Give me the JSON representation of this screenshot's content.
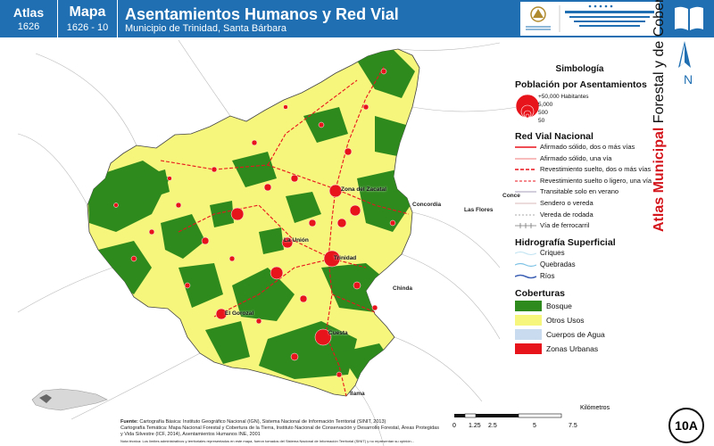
{
  "header": {
    "atlas_label": "Atlas",
    "atlas_number": "1626",
    "mapa_label": "Mapa",
    "mapa_number": "1626 - 10",
    "title": "Asentamientos Humanos y Red Vial",
    "subtitle": "Municipio de Trinidad, Santa Bárbara"
  },
  "side": {
    "vertical_title_bold": "Atlas Municipal",
    "vertical_title_rest": " Forestal y de Cobertura de la Tierra",
    "north_label": "N",
    "badge": "10A"
  },
  "legend": {
    "title": "Simbología",
    "population_heading": "Población por Asentamientos",
    "population_classes": [
      "+50,000 Habitantes",
      "5,000",
      "500",
      "50"
    ],
    "roads_heading": "Red Vial Nacional",
    "roads": [
      "Afirmado sólido, dos o más vías",
      "Afirmado sólido, una vía",
      "Revestimiento suelto, dos o más vías",
      "Revestimiento suelto o ligero, una vía",
      "Transitable solo en verano",
      "Sendero o vereda",
      "Vereda de rodada",
      "Vía de ferrocarril"
    ],
    "hydro_heading": "Hidrografía Superficial",
    "hydro": [
      "Criques",
      "Quebradas",
      "Ríos"
    ],
    "cover_heading": "Coberturas",
    "covers": [
      {
        "label": "Bosque",
        "color": "#2f8a1e"
      },
      {
        "label": "Otros Usos",
        "color": "#f6f67c"
      },
      {
        "label": "Cuerpos de Agua",
        "color": "#c9dcef"
      },
      {
        "label": "Zonas Urbanas",
        "color": "#e8141c"
      }
    ]
  },
  "places": {
    "outside": [
      "Concordia",
      "Las Flores",
      "Conce",
      "Chinda",
      "Ilama"
    ],
    "inside": [
      "Zona del Zacatal",
      "La Unión",
      "Trinidad",
      "El Gorozal",
      "Cuesta"
    ]
  },
  "source": {
    "label": "Fuente:",
    "line1": "Cartografía Básica: Instituto Geográfico Nacional (IGN), Sistema Nacional de Información Territorial (SINIT, 2013)",
    "line2": "Cartografía Temática: Mapa Nacional Forestal y Cobertura de la Tierra, Instituto Nacional de Conservación y Desarrollo Forestal, Áreas Protegidas y Vida Silvestre (ICF, 2014), Asentamientos Humanos INE, 2001",
    "note": "Nota técnica: Los límites administrativos y territoriales representados en este mapa, fueron tomados del Sistema Nacional de Información Territorial (SINIT) y no representan su opinión..."
  },
  "scale": {
    "ticks": [
      "0",
      "1.25",
      "2.5",
      "5",
      "7.5"
    ],
    "unit": "Kilómetros"
  },
  "colors": {
    "header": "#1f6fb2",
    "forest": "#2f8a1e",
    "other": "#f6f67c",
    "urban": "#e8141c",
    "road": "#e8141c"
  }
}
